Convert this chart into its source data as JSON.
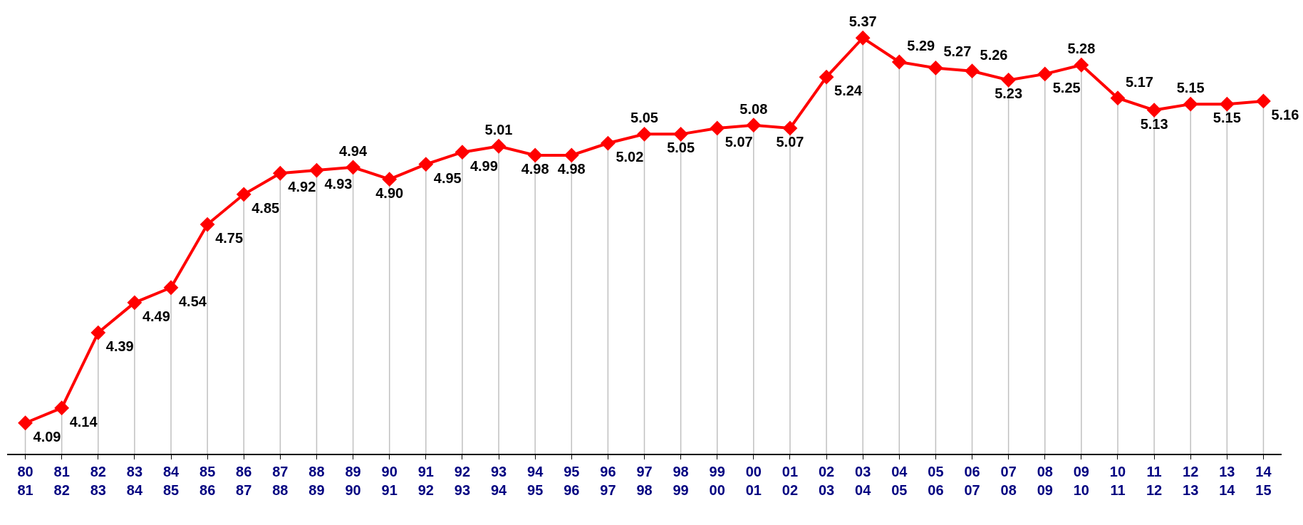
{
  "chart_data": {
    "type": "line",
    "categories": [
      "80\n81",
      "81\n82",
      "82\n83",
      "83\n84",
      "84\n85",
      "85\n86",
      "86\n87",
      "87\n88",
      "88\n89",
      "89\n90",
      "90\n91",
      "91\n92",
      "92\n93",
      "93\n94",
      "94\n95",
      "95\n96",
      "96\n97",
      "97\n98",
      "98\n99",
      "99\n00",
      "00\n01",
      "01\n02",
      "02\n03",
      "03\n04",
      "04\n05",
      "05\n06",
      "06\n07",
      "07\n08",
      "08\n09",
      "09\n10",
      "10\n11",
      "11\n12",
      "12\n13",
      "13\n14",
      "14\n15"
    ],
    "series": [
      {
        "color": "#ff0000",
        "values": [
          4.09,
          4.14,
          4.39,
          4.49,
          4.54,
          4.75,
          4.85,
          4.92,
          4.93,
          4.94,
          4.9,
          4.95,
          4.99,
          5.01,
          4.98,
          4.98,
          5.02,
          5.05,
          5.05,
          5.07,
          5.08,
          5.07,
          5.24,
          5.37,
          5.29,
          5.27,
          5.26,
          5.23,
          5.25,
          5.28,
          5.17,
          5.13,
          5.15,
          5.15,
          5.16
        ],
        "value_labels": [
          "4.09",
          "4.14",
          "4.39",
          "4.49",
          "4.54",
          "4.75",
          "4.85",
          "4.92",
          "4.93",
          "4.94",
          "4.90",
          "4.95",
          "4.99",
          "5.01",
          "4.98",
          "4.98",
          "5.02",
          "5.05",
          "5.05",
          "5.07",
          "5.08",
          "5.07",
          "5.24",
          "5.37",
          "5.29",
          "5.27",
          "5.26",
          "5.23",
          "5.25",
          "5.28",
          "5.17",
          "5.13",
          "5.15",
          "5.15",
          "5.16"
        ]
      }
    ],
    "marker": "diamond",
    "line_style": "solid",
    "grid": "x",
    "legend": false,
    "tick_labels": "x"
  }
}
